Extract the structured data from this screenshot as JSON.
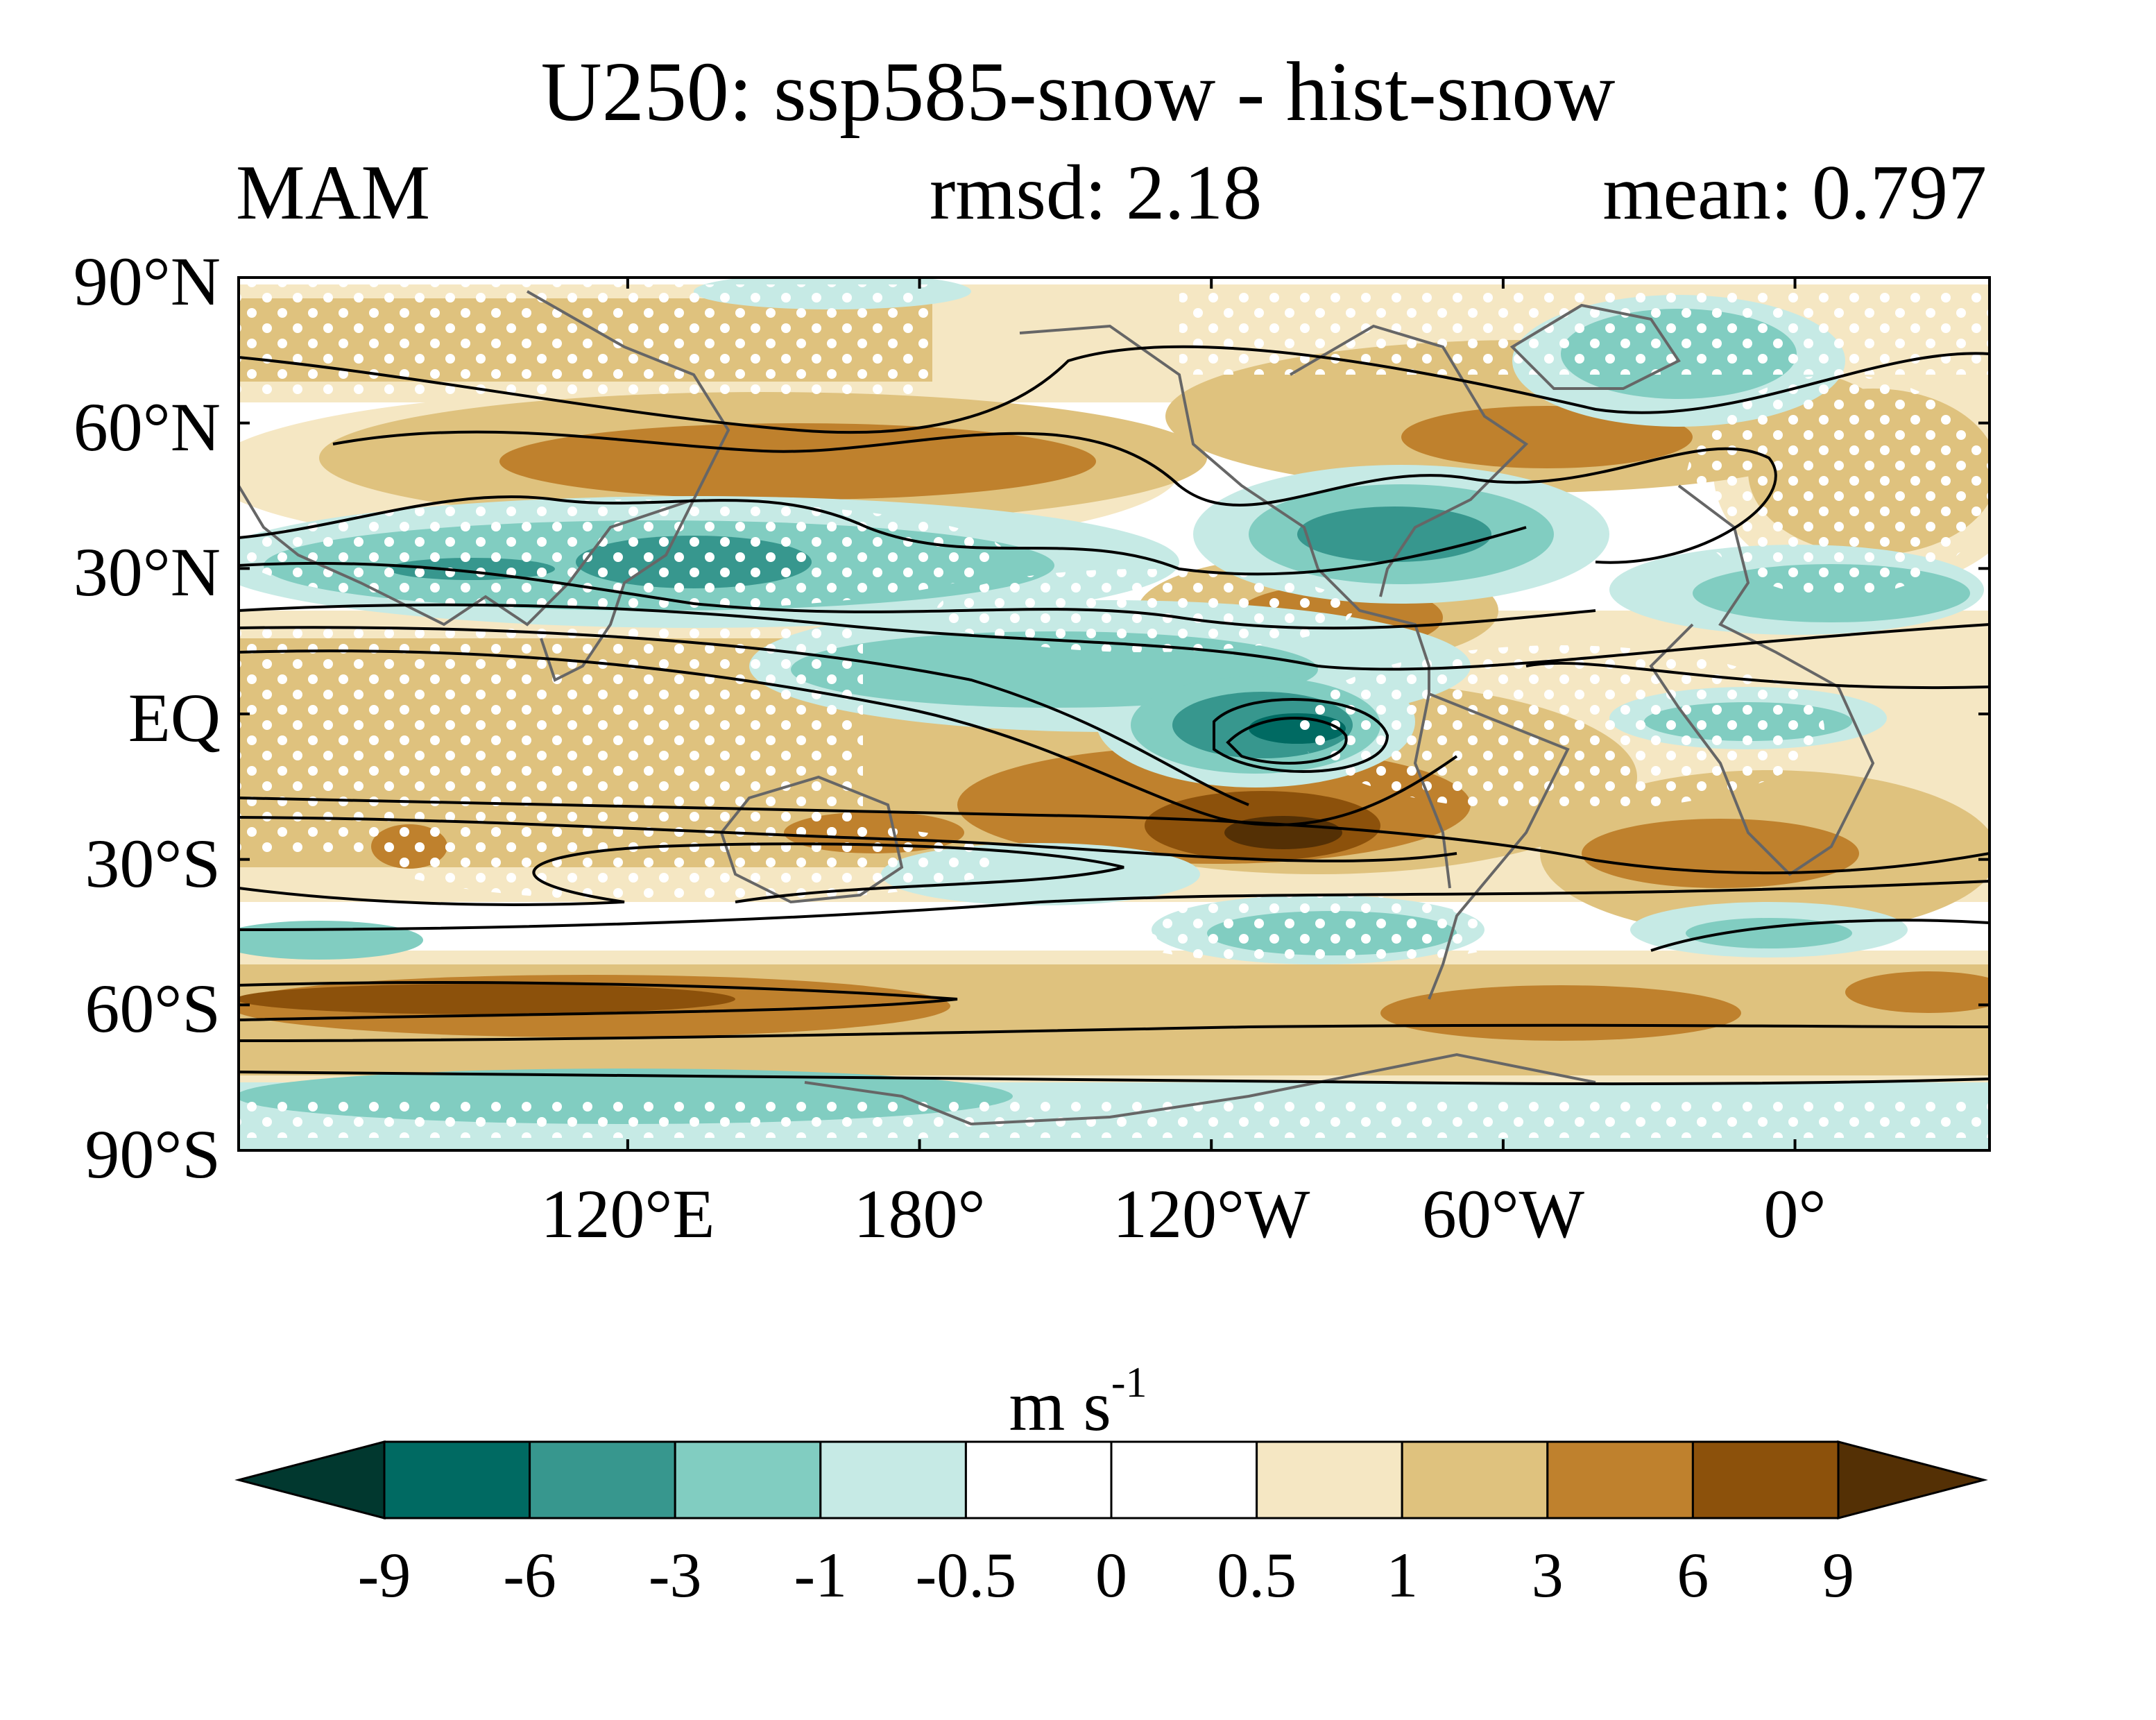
{
  "figure": {
    "title": "U250: ssp585-snow - hist-snow",
    "left_label": "MAM",
    "center_label": "rmsd: 2.18",
    "right_label": "mean: 0.797",
    "units_base": "m s",
    "units_exp": "-1"
  },
  "map": {
    "projection": "equirectangular",
    "lon_range": [
      60,
      420
    ],
    "lat_range": [
      -90,
      90
    ],
    "lat_ticks": [
      {
        "lat": 90,
        "label": "90°N"
      },
      {
        "lat": 60,
        "label": "60°N"
      },
      {
        "lat": 30,
        "label": "30°N"
      },
      {
        "lat": 0,
        "label": "EQ"
      },
      {
        "lat": -30,
        "label": "30°S"
      },
      {
        "lat": -60,
        "label": "60°S"
      },
      {
        "lat": -90,
        "label": "90°S"
      }
    ],
    "lon_ticks": [
      {
        "lon": 140,
        "label": "120°E"
      },
      {
        "lon": 200,
        "label": "180°"
      },
      {
        "lon": 260,
        "label": "120°W"
      },
      {
        "lon": 320,
        "label": "60°W"
      },
      {
        "lon": 380,
        "label": "0°"
      }
    ],
    "colors": {
      "lt_-9": "#01382f",
      "-9_-6": "#006a62",
      "-6_-3": "#37978e",
      "-3_-1": "#81cdc1",
      "-1_-0.5": "#c6eae5",
      "-0.5_0.5": "#ffffff",
      "0.5_1": "#f5e7c3",
      "1_3": "#dfc27e",
      "3_6": "#bf812d",
      "6_9": "#8c510b",
      "gt_9": "#543005",
      "land": "#666666",
      "contour": "#000000"
    }
  },
  "colorbar": {
    "boundaries": [
      "-9",
      "-6",
      "-3",
      "-1",
      "-0.5",
      "0",
      "0.5",
      "1",
      "3",
      "6",
      "9"
    ],
    "colors": [
      "#01382f",
      "#006a62",
      "#37978e",
      "#81cdc1",
      "#c6eae5",
      "#ffffff",
      "#ffffff",
      "#f5e7c3",
      "#dfc27e",
      "#bf812d",
      "#8c510b",
      "#543005"
    ]
  }
}
